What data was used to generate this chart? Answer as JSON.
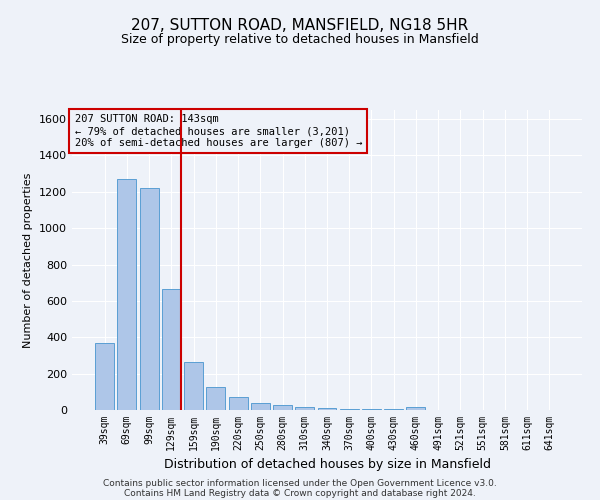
{
  "title_line1": "207, SUTTON ROAD, MANSFIELD, NG18 5HR",
  "title_line2": "Size of property relative to detached houses in Mansfield",
  "xlabel": "Distribution of detached houses by size in Mansfield",
  "ylabel": "Number of detached properties",
  "annotation_line1": "207 SUTTON ROAD: 143sqm",
  "annotation_line2": "← 79% of detached houses are smaller (3,201)",
  "annotation_line3": "20% of semi-detached houses are larger (807) →",
  "bar_labels": [
    "39sqm",
    "69sqm",
    "99sqm",
    "129sqm",
    "159sqm",
    "190sqm",
    "220sqm",
    "250sqm",
    "280sqm",
    "310sqm",
    "340sqm",
    "370sqm",
    "400sqm",
    "430sqm",
    "460sqm",
    "491sqm",
    "521sqm",
    "551sqm",
    "581sqm",
    "611sqm",
    "641sqm"
  ],
  "bar_values": [
    370,
    1270,
    1220,
    665,
    265,
    125,
    72,
    38,
    25,
    15,
    10,
    8,
    6,
    4,
    18,
    0,
    0,
    0,
    0,
    0,
    0
  ],
  "bar_color": "#aec6e8",
  "bar_edge_color": "#5a9fd4",
  "vline_color": "#cc0000",
  "ylim": [
    0,
    1650
  ],
  "yticks": [
    0,
    200,
    400,
    600,
    800,
    1000,
    1200,
    1400,
    1600
  ],
  "bg_color": "#eef2f9",
  "grid_color": "#ffffff",
  "footnote_line1": "Contains HM Land Registry data © Crown copyright and database right 2024.",
  "footnote_line2": "Contains public sector information licensed under the Open Government Licence v3.0."
}
